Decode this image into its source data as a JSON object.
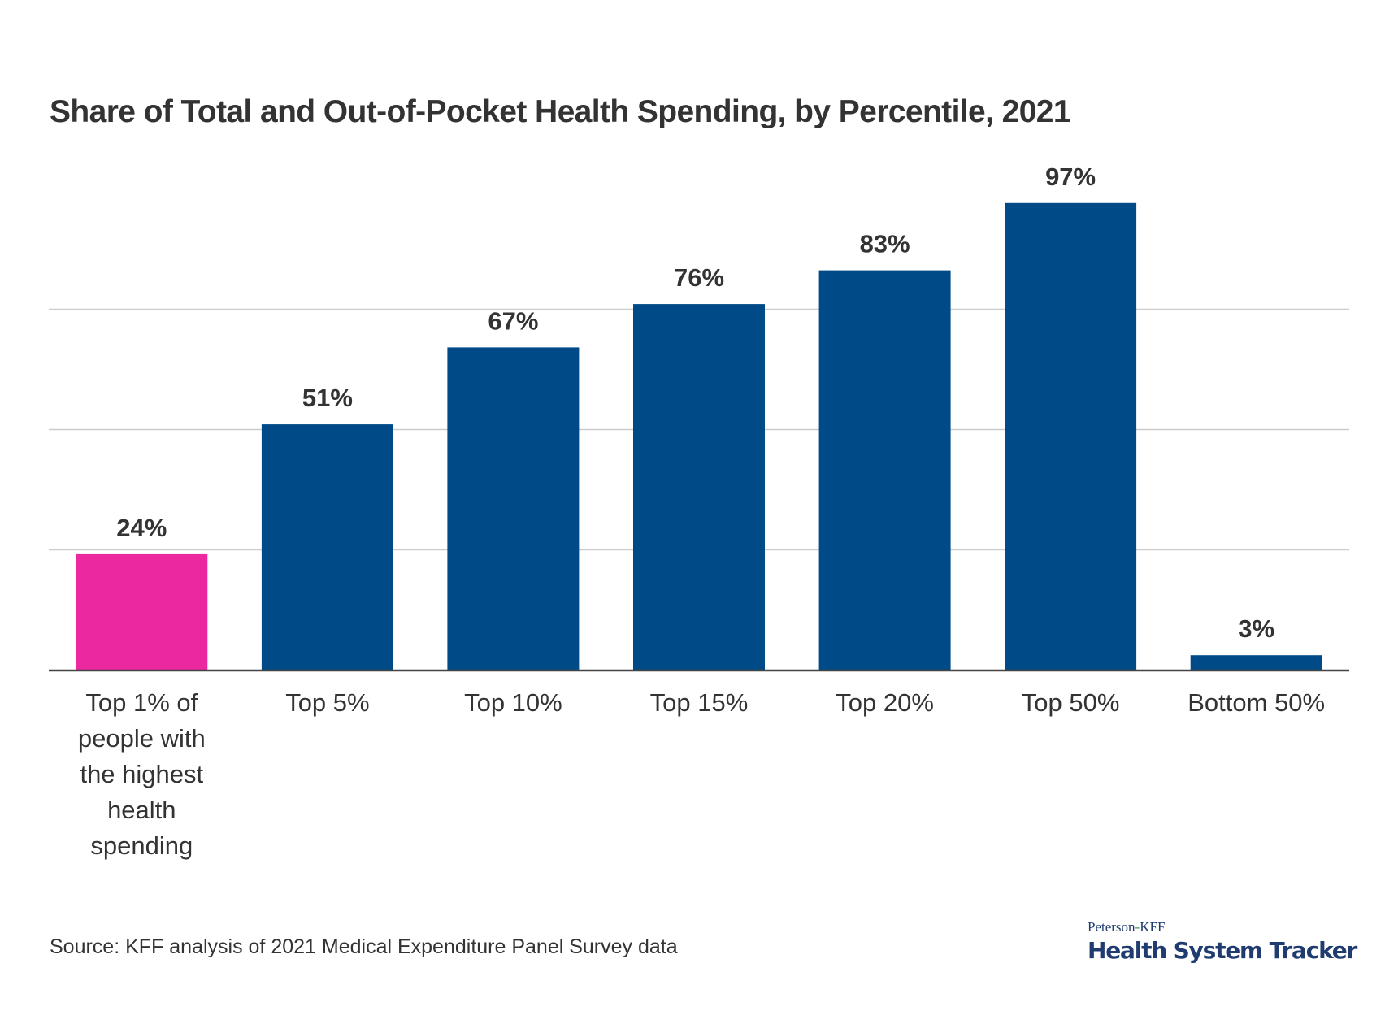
{
  "chart_data": {
    "type": "bar",
    "title": "Share of Total and Out-of-Pocket Health Spending, by Percentile, 2021",
    "xlabel": "",
    "ylabel": "",
    "categories": [
      "Top 1% of people with the highest health spending",
      "Top 5%",
      "Top 10%",
      "Top 15%",
      "Top 20%",
      "Top 50%",
      "Bottom 50%"
    ],
    "category_label_lines": [
      [
        "Top 1% of",
        "people with",
        "the highest",
        "health",
        "spending"
      ],
      [
        "Top 5%"
      ],
      [
        "Top 10%"
      ],
      [
        "Top 15%"
      ],
      [
        "Top 20%"
      ],
      [
        "Top 50%"
      ],
      [
        "Bottom 50%"
      ]
    ],
    "values": [
      24,
      51,
      67,
      76,
      83,
      97,
      3
    ],
    "data_labels": [
      "24%",
      "51%",
      "67%",
      "76%",
      "83%",
      "97%",
      "3%"
    ],
    "bar_colors": [
      "#ec28a0",
      "#004b87",
      "#004b87",
      "#004b87",
      "#004b87",
      "#004b87",
      "#004b87"
    ],
    "highlight_color": "#ec28a0",
    "primary_color": "#004b87",
    "ylim": [
      0,
      100
    ],
    "gridlines": [
      25,
      50,
      75
    ],
    "grid": true,
    "y_tick_labels_visible": false,
    "legend": "none"
  },
  "source": "Source: KFF analysis of 2021 Medical Expenditure Panel Survey data",
  "logo": {
    "top_part1": "Peterson",
    "top_dash": "-",
    "top_part2": "KFF",
    "bottom": "Health System Tracker"
  }
}
